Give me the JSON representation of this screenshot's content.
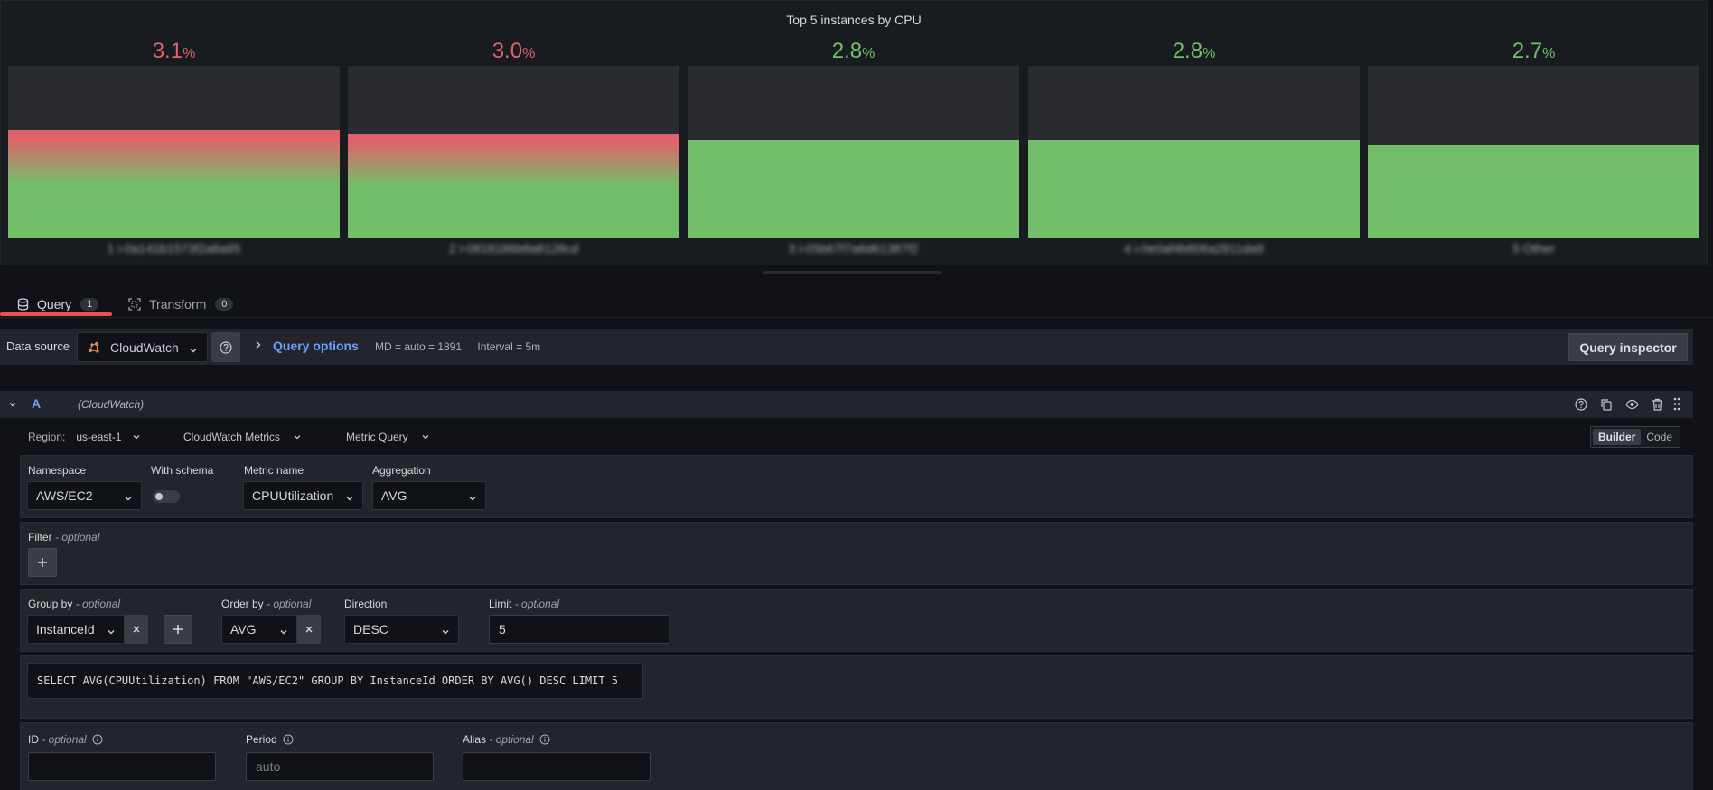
{
  "panel": {
    "title": "Top 5 instances by CPU",
    "gauges": [
      {
        "value": "3.1",
        "unit": "%",
        "label": "1 i-0a141b1573f2a6a95",
        "fill_fraction": 0.63,
        "status": "red"
      },
      {
        "value": "3.0",
        "unit": "%",
        "label": "2 i-0818186b8a8128cd",
        "fill_fraction": 0.61,
        "status": "red"
      },
      {
        "value": "2.8",
        "unit": "%",
        "label": "3 i-05b67f7a6d61387f2",
        "fill_fraction": 0.57,
        "status": "green"
      },
      {
        "value": "2.8",
        "unit": "%",
        "label": "4 i-0e0af4b806a2611da9",
        "fill_fraction": 0.57,
        "status": "green"
      },
      {
        "value": "2.7",
        "unit": "%",
        "label": "5 Other",
        "fill_fraction": 0.54,
        "status": "green"
      }
    ],
    "colors": {
      "red": "#e0636b",
      "green": "#73bf69",
      "track": "#2a2c31"
    }
  },
  "tabs": [
    {
      "label": "Query",
      "count": "1",
      "icon": "database-icon",
      "active": true
    },
    {
      "label": "Transform",
      "count": "0",
      "icon": "transform-icon",
      "active": false
    }
  ],
  "datasource": {
    "label": "Data source",
    "selected": "CloudWatch",
    "query_options_label": "Query options",
    "md_info": "MD = auto = 1891",
    "interval_info": "Interval = 5m",
    "query_inspector_label": "Query inspector"
  },
  "query": {
    "ref_id": "A",
    "datasource_name": "(CloudWatch)",
    "region_label": "Region:",
    "region_value": "us-east-1",
    "api": "CloudWatch Metrics",
    "query_mode": "Metric Query",
    "editor_modes": [
      "Builder",
      "Code"
    ],
    "active_editor_mode": "Builder",
    "namespace_label": "Namespace",
    "namespace_value": "AWS/EC2",
    "with_schema_label": "With schema",
    "metric_name_label": "Metric name",
    "metric_name_value": "CPUUtilization",
    "aggregation_label": "Aggregation",
    "aggregation_value": "AVG",
    "filter_label": "Filter",
    "optional_suffix": "- optional",
    "group_by_label": "Group by",
    "group_by_value": "InstanceId",
    "order_by_label": "Order by",
    "order_by_value": "AVG",
    "direction_label": "Direction",
    "direction_value": "DESC",
    "limit_label": "Limit",
    "limit_value": "5",
    "sql_preview": "SELECT AVG(CPUUtilization) FROM \"AWS/EC2\" GROUP BY InstanceId ORDER BY AVG() DESC LIMIT 5",
    "id_label": "ID",
    "period_label": "Period",
    "period_placeholder": "auto",
    "alias_label": "Alias"
  }
}
